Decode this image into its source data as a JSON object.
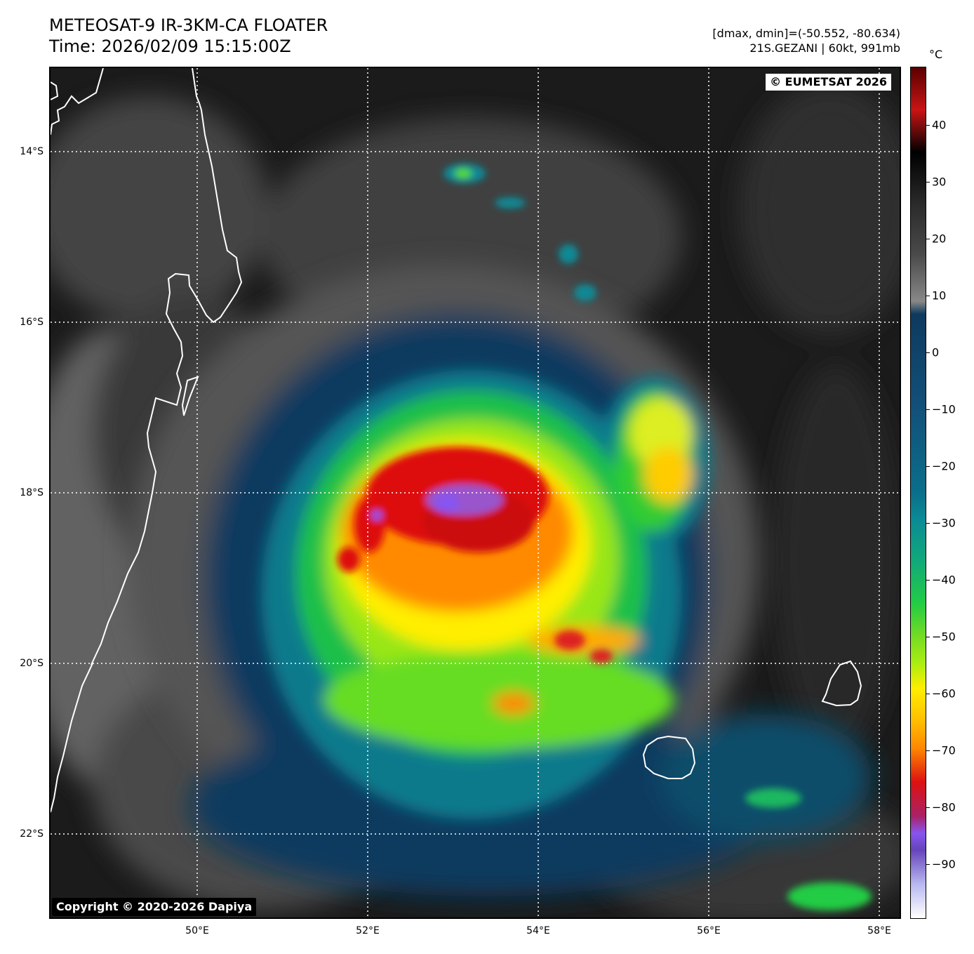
{
  "header": {
    "title_line1": "METEOSAT-9 IR-3KM-CA FLOATER",
    "title_line2": "Time: 2026/02/09 15:15:00Z",
    "stats_line": "[dmax, dmin]=(-50.552, -80.634)",
    "storm_line": "21S.GEZANI | 60kt, 991mb"
  },
  "map": {
    "credit_badge": "© EUMETSAT 2026",
    "copyright_badge": "Copyright © 2020-2026 Dapiya",
    "lat_labels": [
      "14°S",
      "16°S",
      "18°S",
      "20°S",
      "22°S"
    ],
    "lon_labels": [
      "50°E",
      "52°E",
      "54°E",
      "56°E",
      "58°E"
    ],
    "gridlines": "dotted white",
    "coastline_color": "#ffffff"
  },
  "colorbar": {
    "unit": "°C",
    "tick_labels": [
      "40",
      "30",
      "20",
      "10",
      "0",
      "−10",
      "−20",
      "−30",
      "−40",
      "−50",
      "−60",
      "−70",
      "−80",
      "−90"
    ],
    "colors": {
      "warm_top": "#5a0000",
      "red": "#c81414",
      "black": "#000000",
      "gray": "#888888",
      "dark_blue": "#0e3a5e",
      "teal": "#0a8a96",
      "green": "#22cc44",
      "yellow_green": "#aaee11",
      "yellow": "#ffee00",
      "orange": "#ff8800",
      "deep_red": "#dd1111",
      "purple": "#8855ee",
      "pale": "#ffffff"
    }
  }
}
